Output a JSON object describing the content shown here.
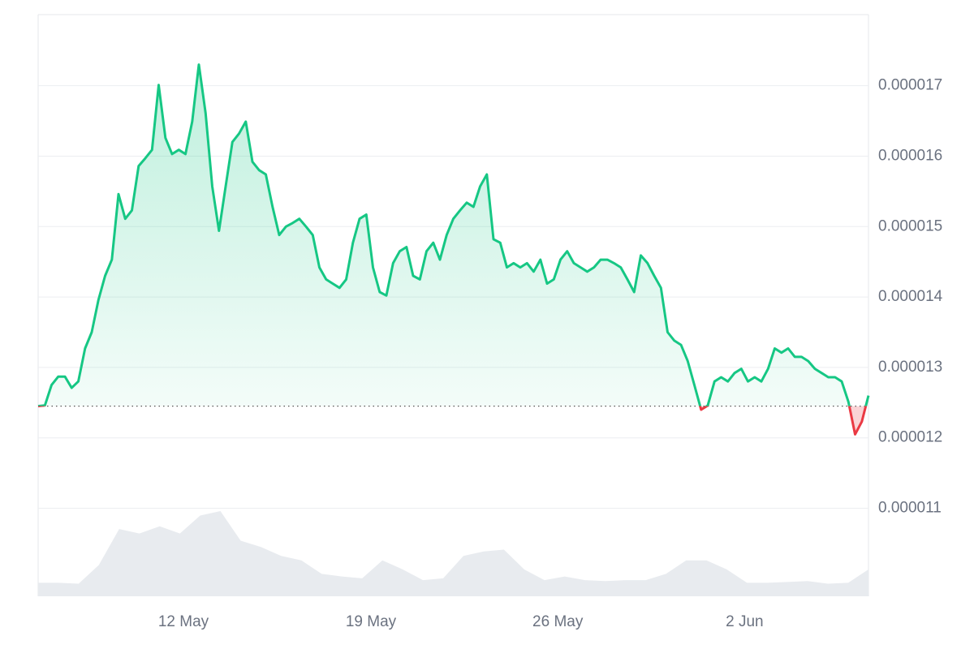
{
  "chart_data": {
    "type": "line",
    "series": [
      {
        "color": "#16c784",
        "down_color": "#ea3943",
        "values": [
          1.245e-05,
          1.246e-05,
          1.275e-05,
          1.287e-05,
          1.287e-05,
          1.271e-05,
          1.28e-05,
          1.327e-05,
          1.35e-05,
          1.396e-05,
          1.43e-05,
          1.453e-05,
          1.546e-05,
          1.511e-05,
          1.523e-05,
          1.586e-05,
          1.597e-05,
          1.609e-05,
          1.701e-05,
          1.626e-05,
          1.603e-05,
          1.609e-05,
          1.603e-05,
          1.649e-05,
          1.73e-05,
          1.661e-05,
          1.557e-05,
          1.494e-05,
          1.557e-05,
          1.62e-05,
          1.632e-05,
          1.649e-05,
          1.592e-05,
          1.58e-05,
          1.574e-05,
          1.528e-05,
          1.488e-05,
          1.5e-05,
          1.505e-05,
          1.511e-05,
          1.5e-05,
          1.488e-05,
          1.442e-05,
          1.425e-05,
          1.419e-05,
          1.413e-05,
          1.425e-05,
          1.477e-05,
          1.511e-05,
          1.517e-05,
          1.442e-05,
          1.407e-05,
          1.402e-05,
          1.448e-05,
          1.465e-05,
          1.471e-05,
          1.43e-05,
          1.425e-05,
          1.465e-05,
          1.477e-05,
          1.453e-05,
          1.488e-05,
          1.511e-05,
          1.523e-05,
          1.534e-05,
          1.528e-05,
          1.557e-05,
          1.574e-05,
          1.482e-05,
          1.477e-05,
          1.442e-05,
          1.448e-05,
          1.442e-05,
          1.448e-05,
          1.436e-05,
          1.453e-05,
          1.419e-05,
          1.425e-05,
          1.453e-05,
          1.465e-05,
          1.448e-05,
          1.442e-05,
          1.436e-05,
          1.442e-05,
          1.453e-05,
          1.453e-05,
          1.448e-05,
          1.442e-05,
          1.425e-05,
          1.407e-05,
          1.459e-05,
          1.448e-05,
          1.43e-05,
          1.413e-05,
          1.35e-05,
          1.338e-05,
          1.332e-05,
          1.309e-05,
          1.275e-05,
          1.24e-05,
          1.246e-05,
          1.28e-05,
          1.286e-05,
          1.28e-05,
          1.292e-05,
          1.298e-05,
          1.28e-05,
          1.286e-05,
          1.28e-05,
          1.298e-05,
          1.327e-05,
          1.321e-05,
          1.327e-05,
          1.315e-05,
          1.315e-05,
          1.309e-05,
          1.298e-05,
          1.292e-05,
          1.286e-05,
          1.286e-05,
          1.28e-05,
          1.251e-05,
          1.205e-05,
          1.223e-05,
          1.26e-05
        ]
      }
    ],
    "baseline": 1.245e-05,
    "volume": [
      15,
      15,
      14,
      35,
      75,
      70,
      78,
      70,
      90,
      95,
      62,
      55,
      45,
      40,
      25,
      22,
      20,
      40,
      30,
      18,
      20,
      45,
      50,
      52,
      30,
      18,
      22,
      18,
      17,
      18,
      18,
      25,
      40,
      40,
      30,
      15,
      15,
      16,
      17,
      14,
      15,
      30
    ],
    "volume_color": "#e8ebef",
    "xlim": [
      0,
      124
    ],
    "xticks": [
      {
        "value": 21.7,
        "label": "12 May"
      },
      {
        "value": 49.7,
        "label": "19 May"
      },
      {
        "value": 77.6,
        "label": "26 May"
      },
      {
        "value": 105.5,
        "label": "2 Jun"
      }
    ],
    "ylim": [
      9.75e-06,
      1.801e-05
    ],
    "yticks": [
      1.1e-05,
      1.2e-05,
      1.3e-05,
      1.4e-05,
      1.5e-05,
      1.6e-05,
      1.7e-05
    ],
    "grid": true
  }
}
